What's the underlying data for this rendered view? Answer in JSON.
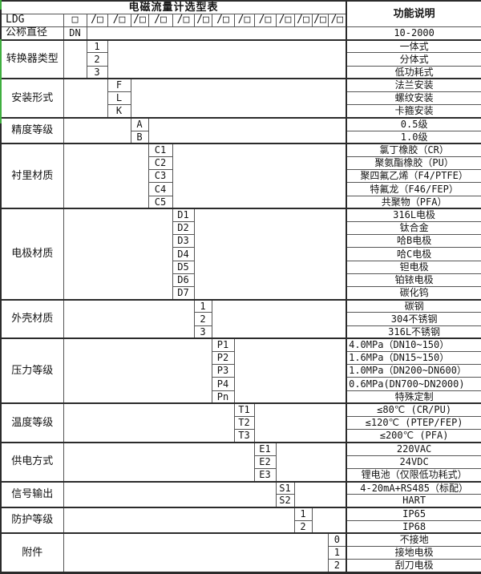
{
  "title": "电磁流量计选型表",
  "function_header": "功能说明",
  "model_row": {
    "prefix": "LDG",
    "first_box": "□",
    "slots": [
      "/□",
      "/□",
      "/□",
      "/□",
      "/□",
      "/□",
      "/□",
      "/□",
      "/□",
      "/□",
      "/□",
      "/□",
      "/□"
    ]
  },
  "diameter_row": {
    "label": "公称直径",
    "code": "DN",
    "desc": "10-2000"
  },
  "sections": [
    {
      "label": "转换器类型",
      "column": 1,
      "options": [
        {
          "code": "1",
          "desc": "一体式"
        },
        {
          "code": "2",
          "desc": "分体式"
        },
        {
          "code": "3",
          "desc": "低功耗式"
        }
      ]
    },
    {
      "label": "安装形式",
      "column": 2,
      "options": [
        {
          "code": "F",
          "desc": "法兰安装"
        },
        {
          "code": "L",
          "desc": "螺纹安装"
        },
        {
          "code": "K",
          "desc": "卡箍安装"
        }
      ]
    },
    {
      "label": "精度等级",
      "column": 3,
      "options": [
        {
          "code": "A",
          "desc": "0.5级"
        },
        {
          "code": "B",
          "desc": "1.0级"
        }
      ]
    },
    {
      "label": "衬里材质",
      "column": 4,
      "options": [
        {
          "code": "C1",
          "desc": "氯丁橡胶（CR）"
        },
        {
          "code": "C2",
          "desc": "聚氨酯橡胶（PU）"
        },
        {
          "code": "C3",
          "desc": "聚四氟乙烯（F4/PTFE）"
        },
        {
          "code": "C4",
          "desc": "特氟龙（F46/FEP）"
        },
        {
          "code": "C5",
          "desc": "共聚物（PFA）"
        }
      ]
    },
    {
      "label": "电极材质",
      "column": 5,
      "options": [
        {
          "code": "D1",
          "desc": "316L电极"
        },
        {
          "code": "D2",
          "desc": "钛合金"
        },
        {
          "code": "D3",
          "desc": "哈B电极"
        },
        {
          "code": "D4",
          "desc": "哈C电极"
        },
        {
          "code": "D5",
          "desc": "钽电极"
        },
        {
          "code": "D6",
          "desc": "铂铱电极"
        },
        {
          "code": "D7",
          "desc": "碳化钨"
        }
      ]
    },
    {
      "label": "外壳材质",
      "column": 6,
      "options": [
        {
          "code": "1",
          "desc": "碳钢"
        },
        {
          "code": "2",
          "desc": "304不锈钢"
        },
        {
          "code": "3",
          "desc": "316L不锈钢"
        }
      ]
    },
    {
      "label": "压力等级",
      "column": 7,
      "options": [
        {
          "code": "P1",
          "desc": "4.0MPa（DN10~150）",
          "align": "left"
        },
        {
          "code": "P2",
          "desc": "1.6MPa（DN15~150）",
          "align": "left"
        },
        {
          "code": "P3",
          "desc": "1.0MPa（DN200~DN600）",
          "align": "left"
        },
        {
          "code": "P4",
          "desc": "0.6MPa(DN700~DN2000)",
          "align": "left"
        },
        {
          "code": "Pn",
          "desc": "特殊定制"
        }
      ]
    },
    {
      "label": "温度等级",
      "column": 8,
      "options": [
        {
          "code": "T1",
          "desc": "≤80℃ (CR/PU)"
        },
        {
          "code": "T2",
          "desc": "≤120℃ (PTEP/FEP)"
        },
        {
          "code": "T3",
          "desc": "≤200℃ (PFA)"
        }
      ]
    },
    {
      "label": "供电方式",
      "column": 9,
      "options": [
        {
          "code": "E1",
          "desc": "220VAC"
        },
        {
          "code": "E2",
          "desc": "24VDC"
        },
        {
          "code": "E3",
          "desc": "锂电池（仅限低功耗式）"
        }
      ]
    },
    {
      "label": "信号输出",
      "column": 10,
      "options": [
        {
          "code": "S1",
          "desc": "4-20mA+RS485（标配）"
        },
        {
          "code": "S2",
          "desc": "HART"
        }
      ]
    },
    {
      "label": "防护等级",
      "column": 11,
      "options": [
        {
          "code": "1",
          "desc": "IP65"
        },
        {
          "code": "2",
          "desc": "IP68"
        }
      ]
    },
    {
      "label": "附件",
      "column": 13,
      "options": [
        {
          "code": "0",
          "desc": "不接地"
        },
        {
          "code": "1",
          "desc": "接地电极"
        },
        {
          "code": "2",
          "desc": "刮刀电极"
        }
      ]
    }
  ],
  "colors": {
    "grid": "#555555",
    "grid_strong": "#2b2b2b",
    "text": "#141414",
    "scan_artifact_green": "#3fae3f"
  }
}
